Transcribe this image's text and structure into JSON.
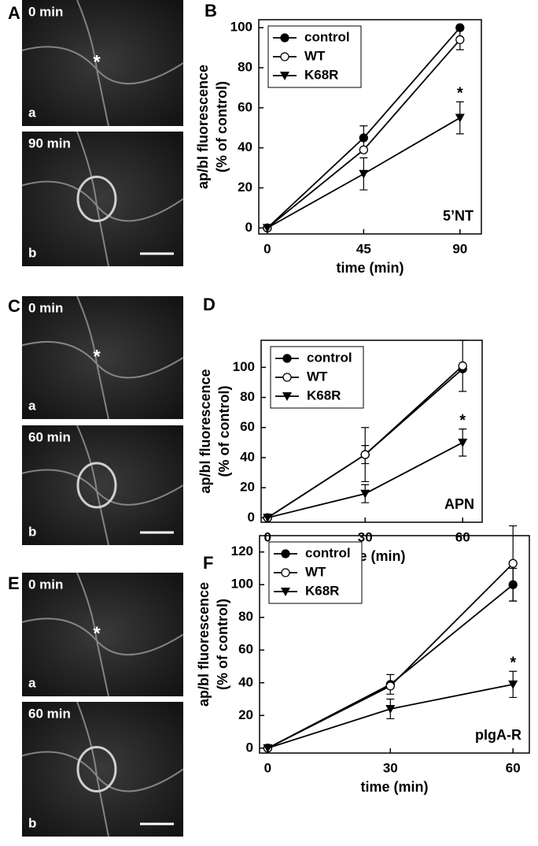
{
  "images": [
    {
      "panel": "A",
      "frames": [
        {
          "time": "0 min",
          "sub": "a",
          "mark": "*"
        },
        {
          "time": "90 min",
          "sub": "b"
        }
      ]
    },
    {
      "panel": "C",
      "frames": [
        {
          "time": "0 min",
          "sub": "a",
          "mark": "*"
        },
        {
          "time": "60 min",
          "sub": "b"
        }
      ]
    },
    {
      "panel": "E",
      "frames": [
        {
          "time": "0 min",
          "sub": "a",
          "mark": "*"
        },
        {
          "time": "60 min",
          "sub": "b"
        }
      ]
    }
  ],
  "chart_data": [
    {
      "type": "line",
      "panel": "B",
      "annotation": "5’NT",
      "significance": "*",
      "ylabel": [
        "ap/bl fluorescence",
        "(% of control)"
      ],
      "xlabel": "time (min)",
      "x": [
        0,
        45,
        90
      ],
      "xlim": [
        -4,
        100
      ],
      "xticks": [
        0,
        45,
        90
      ],
      "ylim": [
        -3,
        104
      ],
      "yticks": [
        0,
        20,
        40,
        60,
        80,
        100
      ],
      "series": [
        {
          "name": "control",
          "color": "#000000",
          "marker": "filled-circle",
          "values": [
            0,
            45,
            100
          ],
          "errors": [
            null,
            6,
            null
          ]
        },
        {
          "name": "WT",
          "color": "#000000",
          "marker": "open-circle",
          "values": [
            0,
            39,
            94
          ],
          "errors": [
            null,
            null,
            5
          ]
        },
        {
          "name": "K68R",
          "color": "#000000",
          "marker": "triangle-down",
          "values": [
            0,
            27,
            55
          ],
          "errors": [
            null,
            8,
            8
          ]
        }
      ]
    },
    {
      "type": "line",
      "panel": "D",
      "annotation": "APN",
      "significance": "*",
      "ylabel": [
        "ap/bl fluorescence",
        "(% of control)"
      ],
      "xlabel": "time (min)",
      "x": [
        0,
        30,
        60
      ],
      "xlim": [
        -2,
        66
      ],
      "xticks": [
        0,
        30,
        60
      ],
      "ylim": [
        -3,
        118
      ],
      "yticks": [
        0,
        20,
        40,
        60,
        80,
        100
      ],
      "series": [
        {
          "name": "control",
          "color": "#000000",
          "marker": "filled-circle",
          "values": [
            0,
            42,
            99
          ],
          "errors": [
            null,
            6,
            null
          ]
        },
        {
          "name": "WT",
          "color": "#000000",
          "marker": "open-circle",
          "values": [
            0,
            42,
            101
          ],
          "errors": [
            null,
            18,
            17
          ]
        },
        {
          "name": "K68R",
          "color": "#000000",
          "marker": "triangle-down",
          "values": [
            0,
            16,
            50
          ],
          "errors": [
            null,
            6,
            9
          ]
        }
      ]
    },
    {
      "type": "line",
      "panel": "F",
      "annotation": "pIgA-R",
      "significance": "*",
      "ylabel": [
        "ap/bl fluorescence",
        "(% of control)"
      ],
      "xlabel": "time (min)",
      "x": [
        0,
        30,
        60
      ],
      "xlim": [
        -2,
        64
      ],
      "xticks": [
        0,
        30,
        60
      ],
      "ylim": [
        -3,
        130
      ],
      "yticks": [
        0,
        20,
        40,
        60,
        80,
        100,
        120
      ],
      "series": [
        {
          "name": "control",
          "color": "#000000",
          "marker": "filled-circle",
          "values": [
            0,
            39,
            100
          ],
          "errors": [
            null,
            6,
            10
          ]
        },
        {
          "name": "WT",
          "color": "#000000",
          "marker": "open-circle",
          "values": [
            0,
            38,
            113
          ],
          "errors": [
            null,
            null,
            23
          ]
        },
        {
          "name": "K68R",
          "color": "#000000",
          "marker": "triangle-down",
          "values": [
            0,
            24,
            39
          ],
          "errors": [
            null,
            6,
            8
          ]
        }
      ]
    }
  ]
}
